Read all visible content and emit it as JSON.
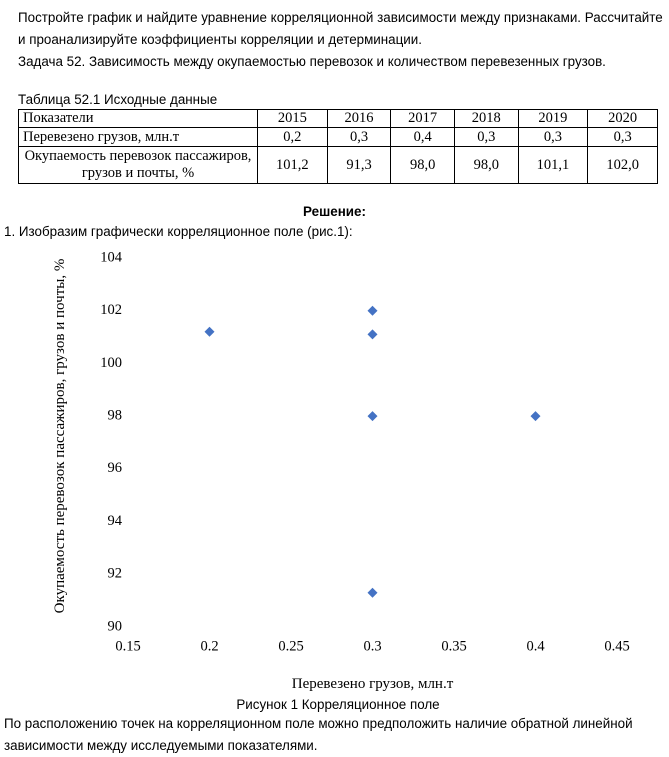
{
  "intro": "Постройте график и найдите уравнение корреляционной зависимости между признаками. Рассчитайте и проанализируйте коэффициенты корреляции и детерминации.",
  "task": "Задача 52. Зависимость между окупаемостью перевозок и количеством перевезенных грузов.",
  "table": {
    "caption": "Таблица 52.1 Исходные данные",
    "header": [
      "Показатели",
      "2015",
      "2016",
      "2017",
      "2018",
      "2019",
      "2020"
    ],
    "rows": [
      [
        "Перевезено грузов, млн.т",
        "0,2",
        "0,3",
        "0,4",
        "0,3",
        "0,3",
        "0,3"
      ],
      [
        "Окупаемость перевозок пассажиров, грузов и почты, %",
        "101,2",
        "91,3",
        "98,0",
        "98,0",
        "101,1",
        "102,0"
      ]
    ]
  },
  "solution_heading": "Решение:",
  "step1": "1. Изобразим графически корреляционное поле (рис.1):",
  "chart_data": {
    "type": "scatter",
    "x_label": "Перевезено грузов, млн.т",
    "y_label": "Окупаемость перевозок пассажиров, грузов и почты, %",
    "x": [
      0.2,
      0.3,
      0.4,
      0.3,
      0.3,
      0.3
    ],
    "values": [
      101.2,
      91.3,
      98,
      98,
      101.1,
      102
    ],
    "color": "#4472c4",
    "xlim": [
      0.15,
      0.45
    ],
    "xticks": [
      0.15,
      0.2,
      0.25,
      0.3,
      0.35,
      0.4,
      0.45
    ],
    "ylim": [
      90,
      104
    ],
    "yticks": [
      90,
      92,
      94,
      96,
      98,
      100,
      102,
      104
    ]
  },
  "figure_caption": "Рисунок 1 Корреляционное поле",
  "conclusion": "По расположению точек на корреляционном поле можно предположить наличие обратной линейной зависимости между исследуемыми показателями."
}
